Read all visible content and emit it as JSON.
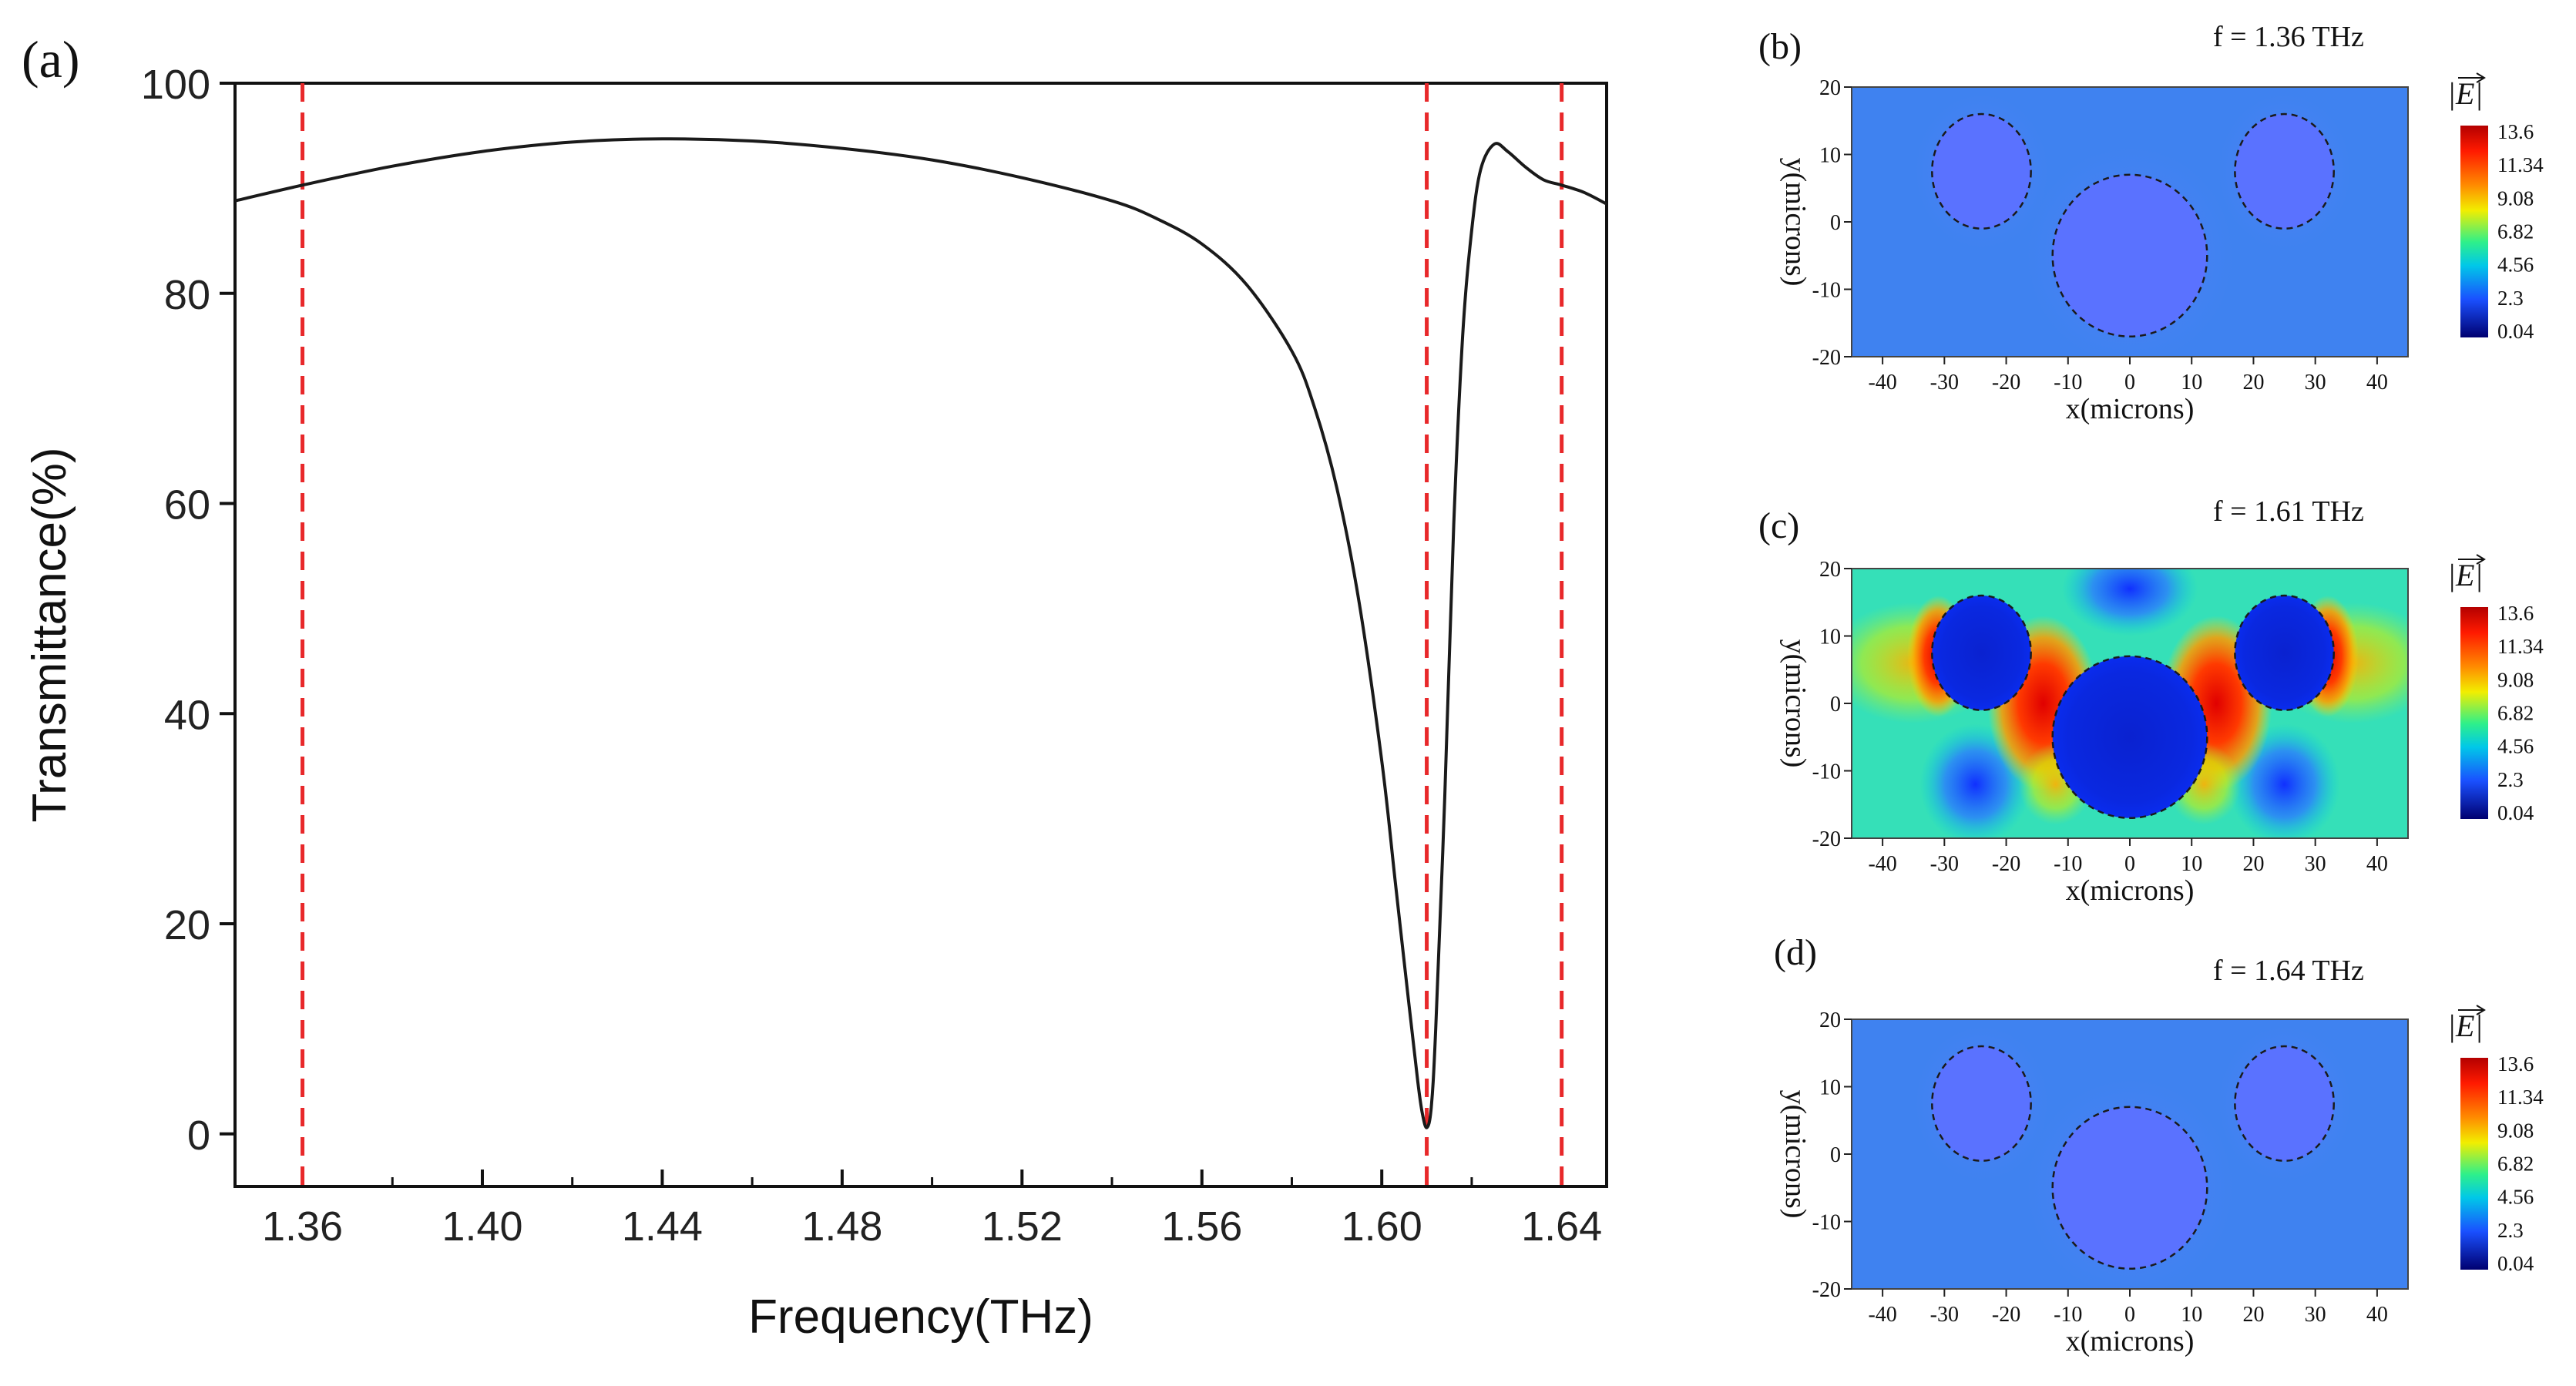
{
  "figure": {
    "panel_labels": [
      "(a)",
      "(b)",
      "(c)",
      "(d)"
    ]
  },
  "chart_data": [
    {
      "type": "line",
      "panel": "(a)",
      "title": "",
      "xlabel": "Frequency(THz)",
      "ylabel": "Transmittance(%)",
      "xlim": [
        1.345,
        1.65
      ],
      "ylim": [
        -5,
        100
      ],
      "xticks": [
        1.36,
        1.4,
        1.44,
        1.48,
        1.52,
        1.56,
        1.6,
        1.64
      ],
      "xtick_labels": [
        "1.36",
        "1.40",
        "1.44",
        "1.48",
        "1.52",
        "1.56",
        "1.60",
        "1.64"
      ],
      "xminor_ticks": [
        1.38,
        1.42,
        1.46,
        1.5,
        1.54,
        1.58,
        1.62
      ],
      "yticks": [
        0,
        20,
        40,
        60,
        80,
        100
      ],
      "ytick_labels": [
        "0",
        "20",
        "40",
        "60",
        "80",
        "100"
      ],
      "grid": false,
      "series": [
        {
          "name": "Transmittance",
          "color": "#1a1a1a",
          "x": [
            1.345,
            1.36,
            1.38,
            1.4,
            1.42,
            1.44,
            1.46,
            1.48,
            1.5,
            1.52,
            1.54,
            1.55,
            1.56,
            1.57,
            1.58,
            1.585,
            1.59,
            1.595,
            1.6,
            1.603,
            1.606,
            1.608,
            1.609,
            1.61,
            1.611,
            1.612,
            1.614,
            1.616,
            1.618,
            1.62,
            1.622,
            1.625,
            1.628,
            1.632,
            1.636,
            1.64,
            1.645,
            1.65
          ],
          "values": [
            88.8,
            90.3,
            92.1,
            93.5,
            94.4,
            94.7,
            94.5,
            93.8,
            92.7,
            91.0,
            88.8,
            87.1,
            84.7,
            80.8,
            74.5,
            69.2,
            61.5,
            50.5,
            35.5,
            24.0,
            12.5,
            5.0,
            2.0,
            0.6,
            2.5,
            10.0,
            32.0,
            58.0,
            76.0,
            86.0,
            91.8,
            94.2,
            93.5,
            92.0,
            90.8,
            90.3,
            89.6,
            88.5
          ]
        }
      ],
      "reference_lines": [
        {
          "axis": "x",
          "value": 1.36,
          "style": "dashed",
          "color": "#e8282a"
        },
        {
          "axis": "x",
          "value": 1.61,
          "style": "dashed",
          "color": "#e8282a"
        },
        {
          "axis": "x",
          "value": 1.64,
          "style": "dashed",
          "color": "#e8282a"
        }
      ]
    },
    {
      "type": "heatmap",
      "panel": "(b)",
      "title": "f = 1.36 THz",
      "xlabel": "x(microns)",
      "ylabel": "y(microns)",
      "xlim": [
        -45,
        45
      ],
      "ylim": [
        -20,
        20
      ],
      "xticks": [
        -40,
        -30,
        -20,
        -10,
        0,
        10,
        20,
        30,
        40
      ],
      "yticks": [
        -20,
        -10,
        0,
        10,
        20
      ],
      "colorbar": {
        "label": "|E|",
        "ticks": [
          "13.6",
          "11.34",
          "9.08",
          "6.82",
          "4.56",
          "2.3",
          "0.04"
        ]
      },
      "field": "uniform",
      "background_value": 4.0,
      "circles": [
        {
          "cx": -24,
          "cy": 7.5,
          "rx": 8,
          "ry": 8.5
        },
        {
          "cx": 25,
          "cy": 7.5,
          "rx": 8,
          "ry": 8.5
        },
        {
          "cx": 0,
          "cy": -5,
          "rx": 12.5,
          "ry": 12
        }
      ]
    },
    {
      "type": "heatmap",
      "panel": "(c)",
      "title": "f = 1.61 THz",
      "xlabel": "x(microns)",
      "ylabel": "y(microns)",
      "xlim": [
        -45,
        45
      ],
      "ylim": [
        -20,
        20
      ],
      "xticks": [
        -40,
        -30,
        -20,
        -10,
        0,
        10,
        20,
        30,
        40
      ],
      "yticks": [
        -20,
        -10,
        0,
        10,
        20
      ],
      "colorbar": {
        "label": "|E|",
        "ticks": [
          "13.6",
          "11.34",
          "9.08",
          "6.82",
          "4.56",
          "2.3",
          "0.04"
        ]
      },
      "field": "resonant",
      "background_value": 6.0,
      "circles": [
        {
          "cx": -24,
          "cy": 7.5,
          "rx": 8,
          "ry": 8.5
        },
        {
          "cx": 25,
          "cy": 7.5,
          "rx": 8,
          "ry": 8.5
        },
        {
          "cx": 0,
          "cy": -5,
          "rx": 12.5,
          "ry": 12
        }
      ]
    },
    {
      "type": "heatmap",
      "panel": "(d)",
      "title": "f = 1.64 THz",
      "xlabel": "x(microns)",
      "ylabel": "y(microns)",
      "xlim": [
        -45,
        45
      ],
      "ylim": [
        -20,
        20
      ],
      "xticks": [
        -40,
        -30,
        -20,
        -10,
        0,
        10,
        20,
        30,
        40
      ],
      "yticks": [
        -20,
        -10,
        0,
        10,
        20
      ],
      "colorbar": {
        "label": "|E|",
        "ticks": [
          "13.6",
          "11.34",
          "9.08",
          "6.82",
          "4.56",
          "2.3",
          "0.04"
        ]
      },
      "field": "uniform",
      "background_value": 4.0,
      "circles": [
        {
          "cx": -24,
          "cy": 7.5,
          "rx": 8,
          "ry": 8.5
        },
        {
          "cx": 25,
          "cy": 7.5,
          "rx": 8,
          "ry": 8.5
        },
        {
          "cx": 0,
          "cy": -5,
          "rx": 12.5,
          "ry": 12
        }
      ]
    }
  ]
}
